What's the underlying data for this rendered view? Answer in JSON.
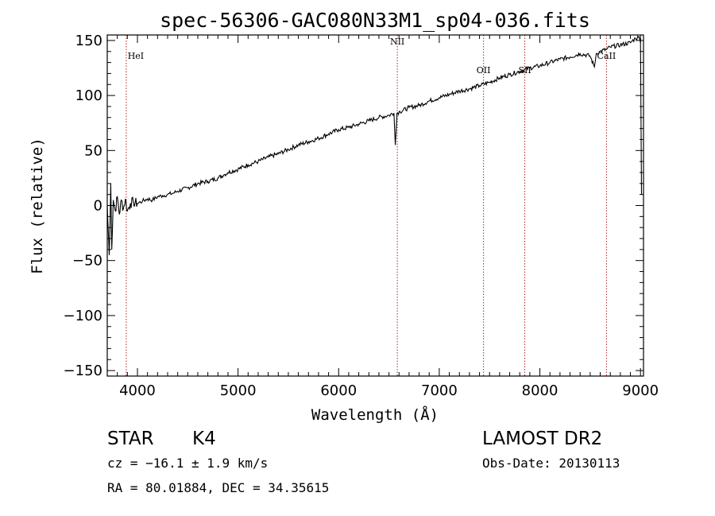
{
  "chart_data": {
    "type": "line",
    "title": "spec-56306-GAC080N33M1_sp04-036.fits",
    "xlabel": "Wavelength (Å)",
    "ylabel": "Flux (relative)",
    "xlim": [
      3700,
      9030
    ],
    "ylim": [
      -155,
      155
    ],
    "xticks": [
      4000,
      5000,
      6000,
      7000,
      8000,
      9000
    ],
    "xtick_labels": [
      "4000",
      "5000",
      "6000",
      "7000",
      "8000",
      "9000"
    ],
    "yticks": [
      -150,
      -100,
      -50,
      0,
      50,
      100,
      150
    ],
    "ytick_labels": [
      "−150",
      "−100",
      "−50",
      "0",
      "50",
      "100",
      "150"
    ],
    "grid": false,
    "series": [
      {
        "x": [
          3700,
          3720,
          3735,
          3745,
          3760,
          3780,
          3800,
          3820,
          3840,
          3860,
          3880,
          3900,
          3930,
          3960,
          4000,
          4050,
          4100,
          4150,
          4200,
          4250,
          4300,
          4350,
          4400,
          4500,
          4600,
          4700,
          4800,
          4860,
          4900,
          5000,
          5100,
          5200,
          5300,
          5400,
          5500,
          5600,
          5700,
          5800,
          5900,
          6000,
          6100,
          6200,
          6300,
          6400,
          6500,
          6550,
          6563,
          6580,
          6600,
          6700,
          6800,
          6900,
          7000,
          7100,
          7200,
          7300,
          7400,
          7500,
          7600,
          7700,
          7800,
          7900,
          8000,
          8100,
          8200,
          8300,
          8400,
          8498,
          8542,
          8560,
          8600,
          8662,
          8700,
          8800,
          8900,
          8950,
          8980,
          9000,
          9010
        ],
        "y": [
          0,
          -45,
          20,
          -40,
          5,
          -5,
          8,
          -8,
          5,
          -3,
          6,
          -5,
          2,
          3,
          2,
          4,
          6,
          5,
          8,
          9,
          10,
          11,
          13,
          16,
          20,
          22,
          25,
          28,
          30,
          33,
          37,
          40,
          44,
          47,
          51,
          55,
          58,
          61,
          65,
          69,
          71,
          74,
          77,
          80,
          82,
          84,
          55,
          84,
          85,
          89,
          91,
          95,
          98,
          101,
          104,
          106,
          109,
          112,
          116,
          119,
          122,
          125,
          127,
          130,
          133,
          135,
          138,
          136,
          126,
          138,
          140,
          142,
          144,
          146,
          148,
          152,
          153,
          152,
          10
        ]
      }
    ],
    "line_markers": [
      {
        "label": "HeI",
        "wavelength": 3889
      },
      {
        "label": "NII",
        "wavelength": 6583
      },
      {
        "label": "OII",
        "wavelength": 7440
      },
      {
        "label": "SII",
        "wavelength": 7850
      },
      {
        "label": "CaII",
        "wavelength": 8662
      }
    ]
  },
  "info": {
    "class": "STAR",
    "subclass": "K4",
    "cz": "cz = −16.1 ± 1.9 km/s",
    "radec": "RA =  80.01884, DEC =  34.35615",
    "survey": "LAMOST DR2",
    "obs_date": "Obs-Date: 20130113"
  },
  "colors": {
    "spectrum": "#000000",
    "marker_line": "#b22222"
  }
}
